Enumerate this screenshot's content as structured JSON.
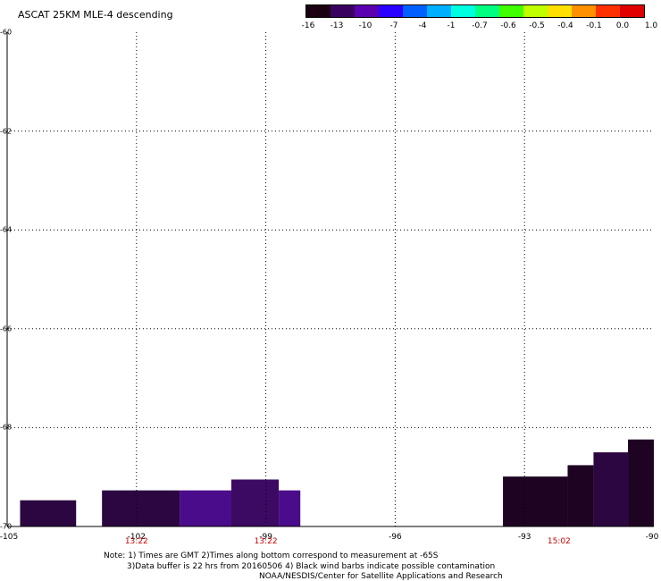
{
  "title": "ASCAT 25KM MLE-4 descending",
  "colorbar": {
    "labels": [
      "-16",
      "-13",
      "-10",
      "-7",
      "-4",
      "-1",
      "-0.7",
      "-0.6",
      "-0.5",
      "-0.4",
      "-0.1",
      "0.0",
      "1.0"
    ],
    "colors": [
      "#1a0010",
      "#3a0060",
      "#5a00b0",
      "#2a00ff",
      "#0060ff",
      "#00b0ff",
      "#00ffe0",
      "#00ff80",
      "#40ff00",
      "#c0ff00",
      "#ffe000",
      "#ff9000",
      "#ff3000",
      "#e00000"
    ]
  },
  "chart_data": {
    "type": "heatmap",
    "title": "ASCAT 25KM MLE-4 descending",
    "xlim": [
      -105,
      -90
    ],
    "ylim": [
      -70,
      -60
    ],
    "x_ticks": [
      "-105",
      "-102",
      "-99",
      "-96",
      "-93",
      "-90"
    ],
    "y_ticks": [
      "-60",
      "-62",
      "-64",
      "-66",
      "-68",
      "-70"
    ],
    "pass_times": [
      {
        "time": "13:22",
        "lon": -102
      },
      {
        "time": "13:22",
        "lon": -99
      },
      {
        "time": "15:02",
        "lon": -92.2
      }
    ],
    "cells": [
      {
        "lon0": -104.7,
        "lon1": -103.4,
        "lat0": -70,
        "lat1": -69.47,
        "value": -14
      },
      {
        "lon0": -102.8,
        "lon1": -101.0,
        "lat0": -70,
        "lat1": -69.27,
        "value": -14
      },
      {
        "lon0": -101.0,
        "lon1": -99.8,
        "lat0": -70,
        "lat1": -69.27,
        "value": -12
      },
      {
        "lon0": -99.8,
        "lon1": -98.7,
        "lat0": -70,
        "lat1": -69.05,
        "value": -13
      },
      {
        "lon0": -98.7,
        "lon1": -98.2,
        "lat0": -70,
        "lat1": -69.27,
        "value": -12
      },
      {
        "lon0": -93.5,
        "lon1": -92.0,
        "lat0": -70,
        "lat1": -68.99,
        "value": -15
      },
      {
        "lon0": -92.0,
        "lon1": -91.4,
        "lat0": -70,
        "lat1": -68.76,
        "value": -15
      },
      {
        "lon0": -91.4,
        "lon1": -90.6,
        "lat0": -70,
        "lat1": -68.5,
        "value": -14
      },
      {
        "lon0": -90.6,
        "lon1": -90.0,
        "lat0": -70,
        "lat1": -68.24,
        "value": -15
      }
    ]
  },
  "notes": {
    "line1": "Note: 1) Times are GMT 2)Times along bottom correspond to measurement at -65S",
    "line2": "3)Data buffer is 22 hrs from 20160506 4) Black wind barbs indicate possible contamination",
    "line3": "NOAA/NESDIS/Center for Satellite Applications and Research"
  }
}
